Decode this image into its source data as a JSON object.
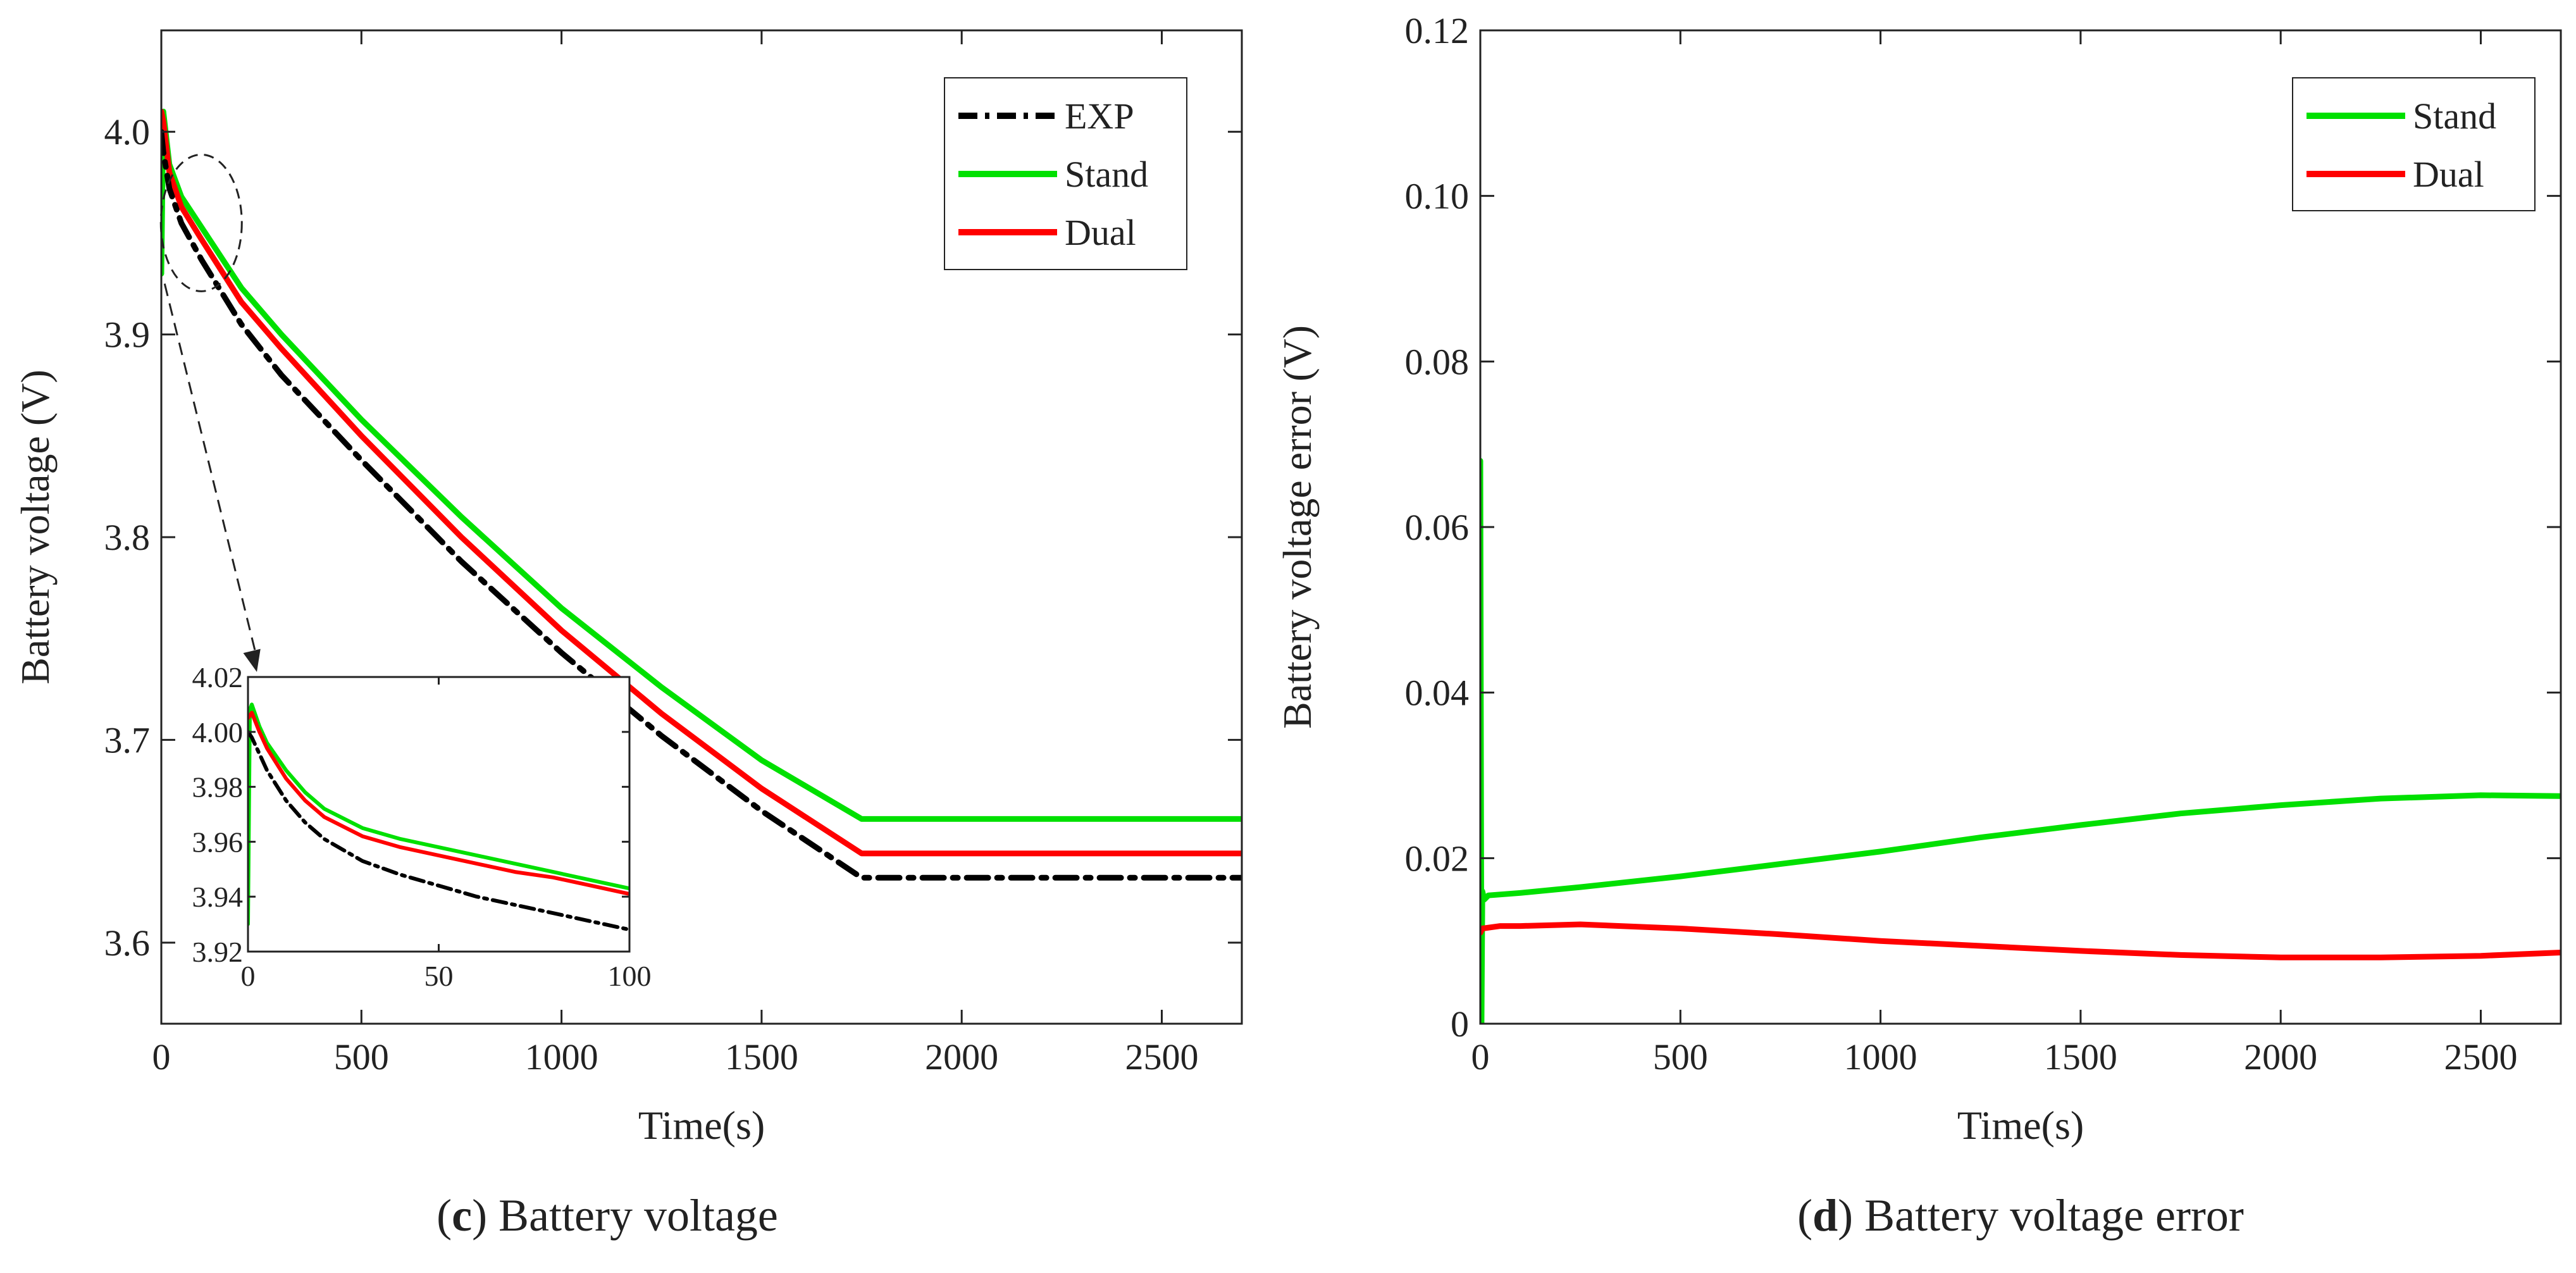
{
  "colors": {
    "exp": "#000000",
    "stand": "#00e000",
    "dual": "#ff0000",
    "axis": "#222222"
  },
  "chart_data": [
    {
      "id": "c",
      "type": "line",
      "caption": {
        "letter": "c",
        "open": "(",
        "close": ")",
        "text": " Battery voltage"
      },
      "title": "",
      "xlabel": "Time(s)",
      "ylabel": "Battery voltage (V)",
      "xlim": [
        0,
        2700
      ],
      "ylim": [
        3.56,
        4.05
      ],
      "xticks": [
        0,
        500,
        1000,
        1500,
        2000,
        2500
      ],
      "xtick_labels": [
        "0",
        "500",
        "1000",
        "1500",
        "2000",
        "2500"
      ],
      "yticks": [
        3.6,
        3.7,
        3.8,
        3.9,
        4.0
      ],
      "ytick_labels": [
        "3.6",
        "3.7",
        "3.8",
        "3.9",
        "4.0"
      ],
      "legend": {
        "position": "top-right",
        "entries": [
          "EXP",
          "Stand",
          "Dual"
        ]
      },
      "series": [
        {
          "name": "EXP",
          "style": "dash-dot",
          "x": [
            0,
            5,
            20,
            50,
            100,
            200,
            300,
            500,
            750,
            1000,
            1250,
            1500,
            1750,
            2000,
            2250,
            2500,
            2700
          ],
          "values": [
            4.0,
            3.99,
            3.972,
            3.955,
            3.937,
            3.905,
            3.88,
            3.838,
            3.788,
            3.743,
            3.702,
            3.665,
            3.632,
            3.632,
            3.632,
            3.632,
            3.632
          ]
        },
        {
          "name": "Stand",
          "style": "solid",
          "x": [
            0,
            5,
            20,
            50,
            100,
            200,
            300,
            500,
            750,
            1000,
            1250,
            1500,
            1750,
            2000,
            2250,
            2500,
            2700
          ],
          "values": [
            3.93,
            4.01,
            3.984,
            3.968,
            3.953,
            3.923,
            3.9,
            3.858,
            3.81,
            3.765,
            3.726,
            3.69,
            3.661,
            3.661,
            3.661,
            3.661,
            3.661
          ]
        },
        {
          "name": "Dual",
          "style": "solid",
          "x": [
            0,
            5,
            20,
            50,
            100,
            200,
            300,
            500,
            750,
            1000,
            1250,
            1500,
            1750,
            2000,
            2250,
            2500,
            2700
          ],
          "values": [
            4.01,
            4.005,
            3.98,
            3.963,
            3.947,
            3.916,
            3.893,
            3.85,
            3.8,
            3.754,
            3.713,
            3.676,
            3.644,
            3.644,
            3.644,
            3.644,
            3.644
          ]
        }
      ],
      "inset": {
        "xlim": [
          0,
          100
        ],
        "ylim": [
          3.92,
          4.02
        ],
        "xticks": [
          0,
          50,
          100
        ],
        "xtick_labels": [
          "0",
          "50",
          "100"
        ],
        "yticks": [
          3.92,
          3.94,
          3.96,
          3.98,
          4.0,
          4.02
        ],
        "ytick_labels": [
          "3.92",
          "3.94",
          "3.96",
          "3.98",
          "4.00",
          "4.02"
        ],
        "series": [
          {
            "name": "EXP",
            "style": "dash-dot",
            "x": [
              0,
              1,
              3,
              5,
              10,
              15,
              20,
              30,
              40,
              50,
              60,
              70,
              80,
              90,
              100
            ],
            "values": [
              4.0,
              3.998,
              3.992,
              3.986,
              3.975,
              3.967,
              3.961,
              3.953,
              3.948,
              3.944,
              3.94,
              3.937,
              3.934,
              3.931,
              3.928
            ]
          },
          {
            "name": "Stand",
            "style": "solid",
            "x": [
              0,
              0.5,
              1,
              3,
              5,
              10,
              15,
              20,
              30,
              40,
              50,
              60,
              70,
              80,
              90,
              100
            ],
            "values": [
              3.93,
              4.008,
              4.01,
              4.002,
              3.996,
              3.986,
              3.978,
              3.972,
              3.965,
              3.961,
              3.958,
              3.955,
              3.952,
              3.949,
              3.946,
              3.943
            ]
          },
          {
            "name": "Dual",
            "style": "solid",
            "x": [
              0,
              1,
              3,
              5,
              10,
              15,
              20,
              30,
              40,
              50,
              60,
              70,
              80,
              90,
              100
            ],
            "values": [
              4.005,
              4.007,
              4.0,
              3.994,
              3.983,
              3.975,
              3.969,
              3.962,
              3.958,
              3.955,
              3.952,
              3.949,
              3.947,
              3.944,
              3.941
            ]
          }
        ]
      }
    },
    {
      "id": "d",
      "type": "line",
      "caption": {
        "letter": "d",
        "open": "(",
        "close": ")",
        "text": " Battery voltage error"
      },
      "title": "",
      "xlabel": "Time(s)",
      "ylabel": "Battery voltage error (V)",
      "xlim": [
        0,
        2700
      ],
      "ylim": [
        0,
        0.12
      ],
      "xticks": [
        0,
        500,
        1000,
        1500,
        2000,
        2500
      ],
      "xtick_labels": [
        "0",
        "500",
        "1000",
        "1500",
        "2000",
        "2500"
      ],
      "yticks": [
        0,
        0.02,
        0.04,
        0.06,
        0.08,
        0.1,
        0.12
      ],
      "ytick_labels": [
        "0",
        "0.02",
        "0.04",
        "0.06",
        "0.08",
        "0.10",
        "0.12"
      ],
      "legend": {
        "position": "top-right",
        "entries": [
          "Stand",
          "Dual"
        ]
      },
      "series": [
        {
          "name": "Stand",
          "style": "solid",
          "x": [
            0,
            3,
            5,
            10,
            20,
            100,
            250,
            500,
            750,
            1000,
            1250,
            1500,
            1750,
            2000,
            2250,
            2500,
            2700
          ],
          "values": [
            0.068,
            0.0,
            0.016,
            0.015,
            0.0155,
            0.0158,
            0.0165,
            0.0178,
            0.0193,
            0.0208,
            0.0225,
            0.024,
            0.0254,
            0.0264,
            0.0272,
            0.0276,
            0.0275
          ]
        },
        {
          "name": "Dual",
          "style": "solid",
          "x": [
            0,
            5,
            50,
            100,
            250,
            500,
            750,
            1000,
            1250,
            1500,
            1750,
            2000,
            2250,
            2500,
            2700
          ],
          "values": [
            0.011,
            0.0115,
            0.0118,
            0.0118,
            0.012,
            0.0115,
            0.0108,
            0.01,
            0.0094,
            0.0088,
            0.0083,
            0.008,
            0.008,
            0.0082,
            0.0086
          ]
        }
      ]
    }
  ]
}
